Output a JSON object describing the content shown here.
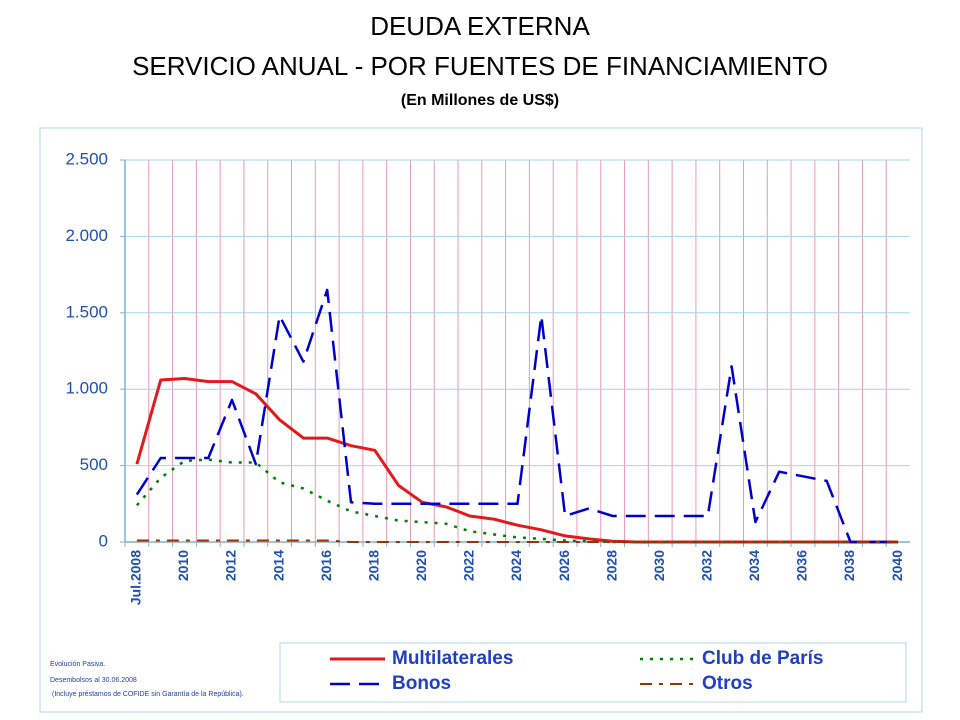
{
  "chart_data": {
    "type": "line",
    "title": [
      "DEUDA EXTERNA",
      "SERVICIO ANUAL - POR FUENTES DE FINANCIAMIENTO"
    ],
    "subtitle": "(En Millones de US$)",
    "categories": [
      "Jul.2008",
      null,
      "2010",
      null,
      "2012",
      null,
      "2014",
      null,
      "2016",
      null,
      "2018",
      null,
      "2020",
      null,
      "2022",
      null,
      "2024",
      null,
      "2026",
      null,
      "2028",
      null,
      "2030",
      null,
      "2032",
      null,
      "2034",
      null,
      "2036",
      null,
      "2038",
      null,
      "2040"
    ],
    "ylim": [
      0,
      2500
    ],
    "yticks": [
      0,
      500,
      {
        "value": 1000,
        "label": "1.000"
      },
      {
        "value": 1500,
        "label": "1.500"
      },
      {
        "value": 2000,
        "label": "2.000"
      },
      {
        "value": 2500,
        "label": "2.500"
      }
    ],
    "grid": true,
    "series": [
      {
        "name": "Multilaterales",
        "color": "#e3191c",
        "style": "solid",
        "values": [
          510,
          1060,
          1070,
          1050,
          1050,
          970,
          800,
          680,
          680,
          630,
          600,
          370,
          260,
          230,
          170,
          150,
          110,
          80,
          40,
          20,
          5,
          0,
          0,
          0,
          0,
          0,
          0,
          0,
          0,
          0,
          0,
          0,
          0
        ]
      },
      {
        "name": "Club de París",
        "color": "#008000",
        "style": "dotted",
        "values": [
          240,
          420,
          530,
          540,
          520,
          520,
          390,
          350,
          270,
          200,
          170,
          140,
          130,
          120,
          70,
          50,
          30,
          20,
          10,
          5,
          0,
          0,
          0,
          0,
          0,
          0,
          0,
          0,
          0,
          0,
          0,
          0,
          0
        ]
      },
      {
        "name": "Bonos",
        "color": "#0000cc",
        "style": "dashed",
        "values": [
          310,
          550,
          550,
          550,
          930,
          510,
          1480,
          1180,
          1650,
          260,
          250,
          250,
          250,
          250,
          250,
          250,
          250,
          1480,
          170,
          220,
          170,
          170,
          170,
          170,
          170,
          1150,
          130,
          460,
          430,
          400,
          0,
          0,
          0
        ]
      },
      {
        "name": "Otros",
        "color": "#993300",
        "style": "dashdot",
        "values": [
          10,
          10,
          10,
          10,
          10,
          10,
          10,
          10,
          10,
          0,
          0,
          0,
          0,
          0,
          0,
          0,
          0,
          0,
          0,
          0,
          0,
          0,
          0,
          0,
          0,
          0,
          0,
          0,
          0,
          0,
          0,
          0,
          0
        ]
      }
    ],
    "notes": [
      "Evolución Pasiva.",
      "Desembolsos al 30.06.2008",
      "(Incluye préstamos de COFIDE sin Garantía de la República)."
    ]
  }
}
